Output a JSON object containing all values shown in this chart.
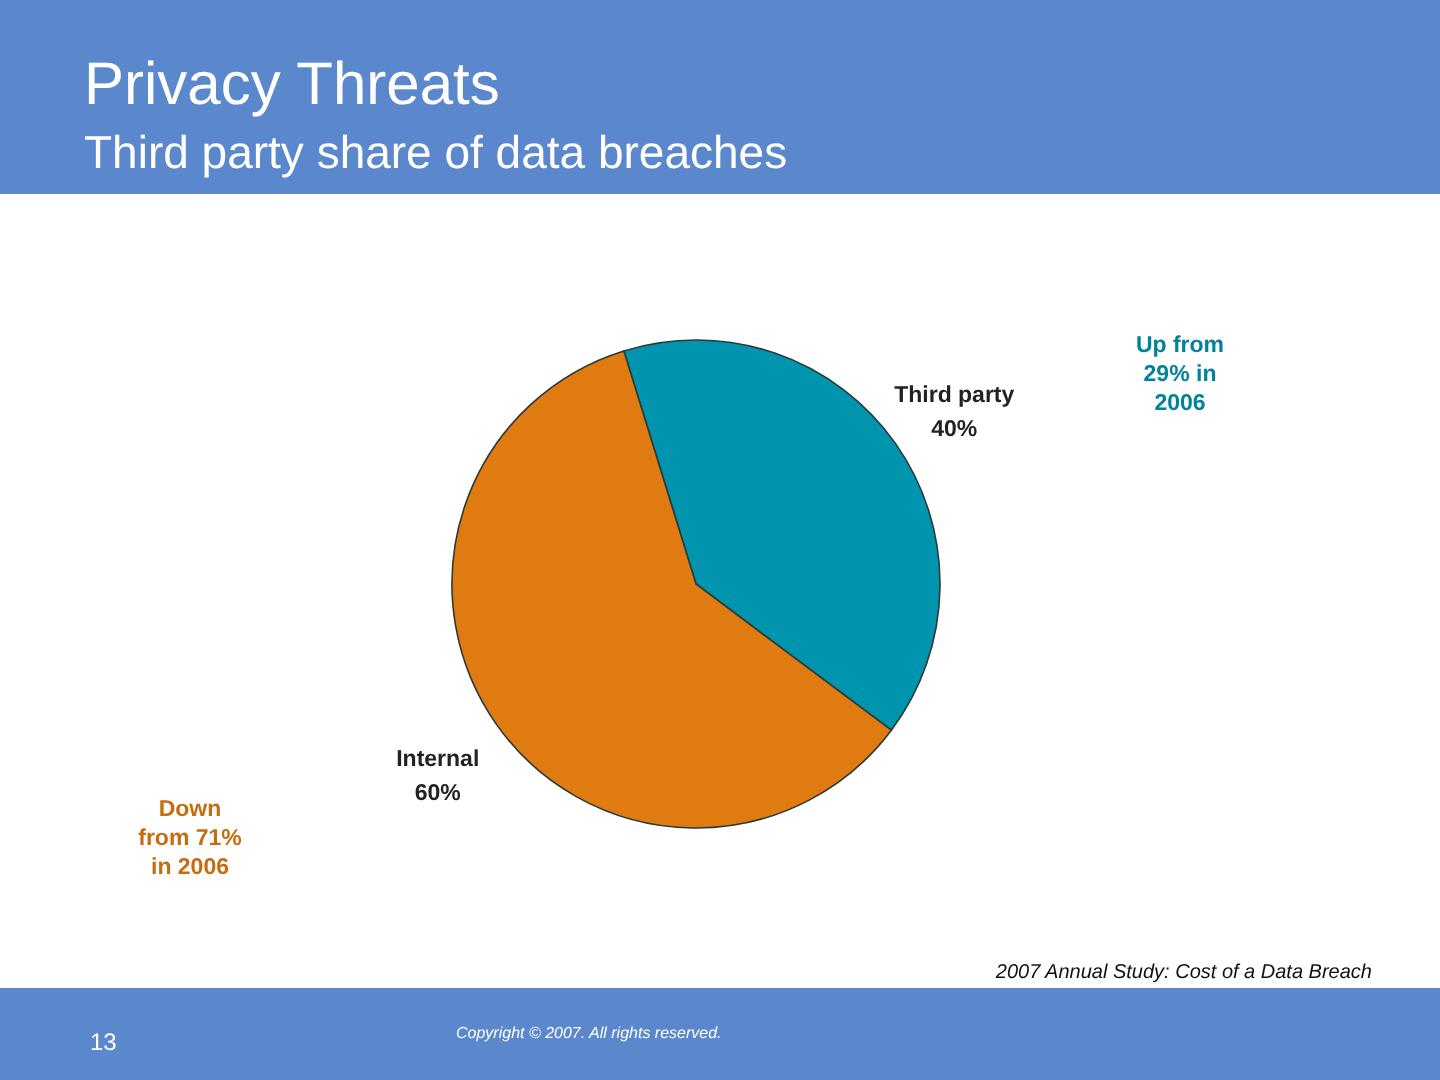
{
  "chart_data": {
    "type": "pie",
    "title": "Privacy Threats",
    "subtitle": "Third party share of data breaches",
    "categories": [
      "Third party",
      "Internal"
    ],
    "values": [
      40,
      60
    ],
    "colors": [
      "#0094ae",
      "#e07b12"
    ],
    "value_labels": [
      "40%",
      "60%"
    ],
    "annotations": [
      "Up from 29% in 2006",
      "Down from 71% in 2006",
      "2007 Annual Study: Cost of a Data Breach",
      "Copyright © 2007. All rights reserved.",
      "13"
    ]
  }
}
